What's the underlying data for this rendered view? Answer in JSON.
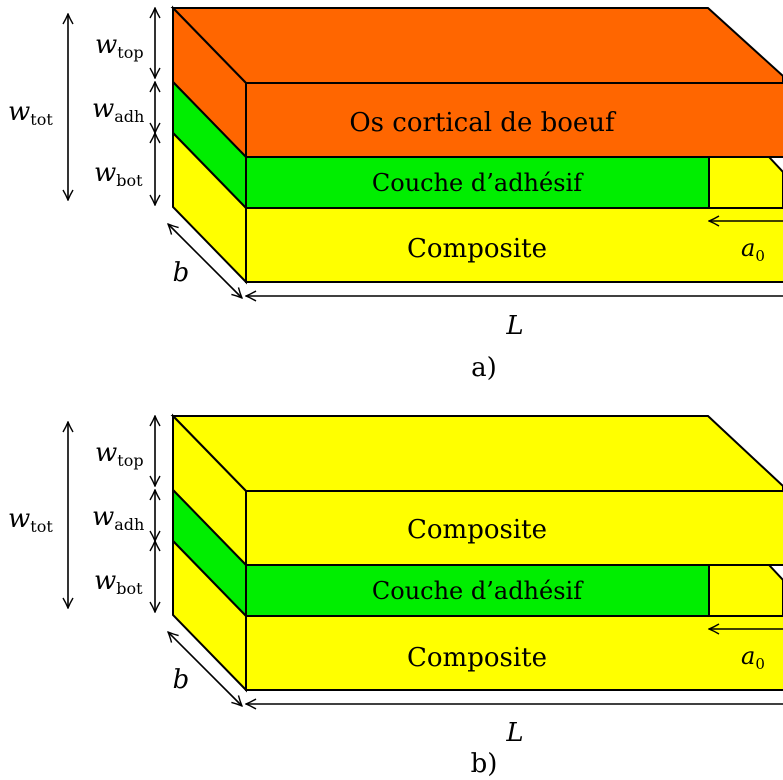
{
  "colors": {
    "bone": "#ff6600",
    "adhesive": "#00ee00",
    "composite": "#ffff00",
    "outline": "#000000"
  },
  "symbols": {
    "w_tot": {
      "base": "w",
      "sub": "tot"
    },
    "w_top": {
      "base": "w",
      "sub": "top"
    },
    "w_adh": {
      "base": "w",
      "sub": "adh"
    },
    "w_bot": {
      "base": "w",
      "sub": "bot"
    },
    "b": "b",
    "L": "L",
    "a0": {
      "base": "a",
      "sub": "0"
    }
  },
  "panels": [
    {
      "caption": "a)",
      "top_layer_label": "Os cortical de boeuf",
      "adhesive_label": "Couche d’adhésif",
      "bottom_layer_label": "Composite"
    },
    {
      "caption": "b)",
      "top_layer_label": "Composite",
      "adhesive_label": "Couche d’adhésif",
      "bottom_layer_label": "Composite"
    }
  ]
}
